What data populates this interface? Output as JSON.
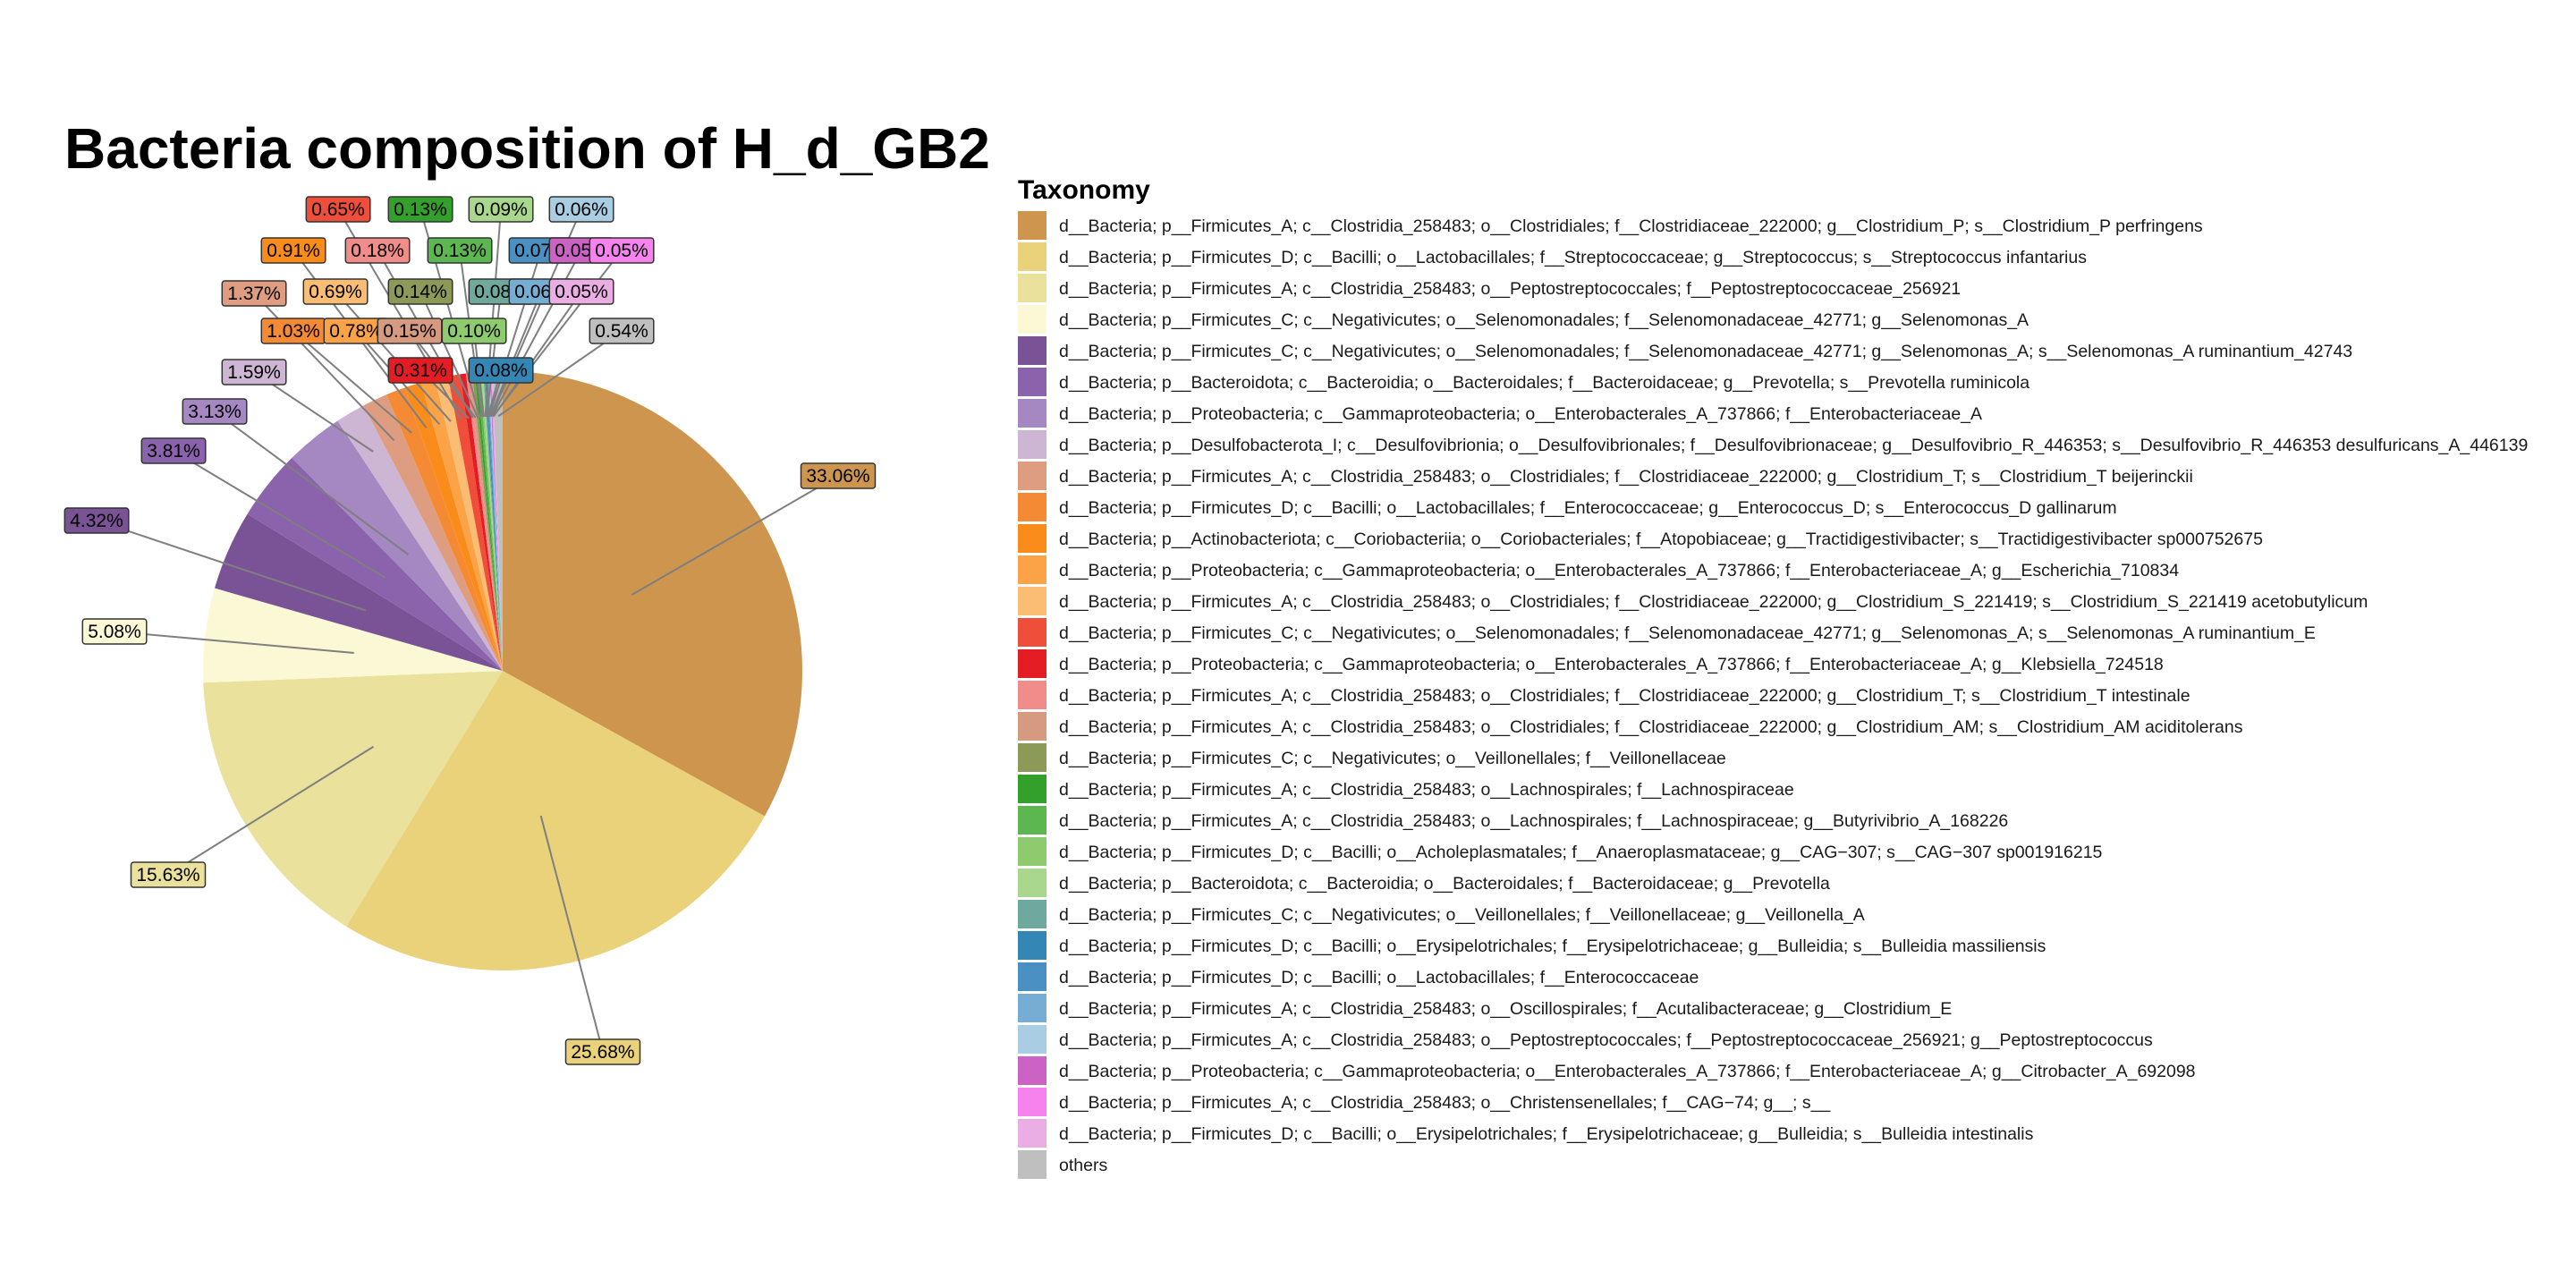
{
  "chart_data": {
    "type": "pie",
    "title": "Bacteria composition of H_d_GB2",
    "legend": {
      "title": "Taxonomy",
      "placement": "right"
    },
    "slices": [
      {
        "label": "d__Bacteria; p__Firmicutes_A; c__Clostridia_258483; o__Clostridiales; f__Clostridiaceae_222000; g__Clostridium_P; s__Clostridium_P perfringens",
        "value": 33.06,
        "value_label": "33.06%",
        "color": "#CE954F"
      },
      {
        "label": "d__Bacteria; p__Firmicutes_D; c__Bacilli; o__Lactobacillales; f__Streptococcaceae; g__Streptococcus; s__Streptococcus infantarius",
        "value": 25.68,
        "value_label": "25.68%",
        "color": "#E9D27A"
      },
      {
        "label": "d__Bacteria; p__Firmicutes_A; c__Clostridia_258483; o__Peptostreptococcales; f__Peptostreptococcaceae_256921",
        "value": 15.63,
        "value_label": "15.63%",
        "color": "#EAE19C"
      },
      {
        "label": "d__Bacteria; p__Firmicutes_C; c__Negativicutes; o__Selenomonadales; f__Selenomonadaceae_42771; g__Selenomonas_A",
        "value": 5.08,
        "value_label": "5.08%",
        "color": "#FAF8D5"
      },
      {
        "label": "d__Bacteria; p__Firmicutes_C; c__Negativicutes; o__Selenomonadales; f__Selenomonadaceae_42771; g__Selenomonas_A; s__Selenomonas_A ruminantium_42743",
        "value": 4.32,
        "value_label": "4.32%",
        "color": "#7A5296"
      },
      {
        "label": "d__Bacteria; p__Bacteroidota; c__Bacteroidia; o__Bacteroidales; f__Bacteroidaceae; g__Prevotella; s__Prevotella ruminicola",
        "value": 3.81,
        "value_label": "3.81%",
        "color": "#8A63AC"
      },
      {
        "label": "d__Bacteria; p__Proteobacteria; c__Gammaproteobacteria; o__Enterobacterales_A_737866; f__Enterobacteriaceae_A",
        "value": 3.13,
        "value_label": "3.13%",
        "color": "#A587C2"
      },
      {
        "label": "d__Bacteria; p__Desulfobacterota_I; c__Desulfovibrionia; o__Desulfovibrionales; f__Desulfovibrionaceae; g__Desulfovibrio_R_446353; s__Desulfovibrio_R_446353 desulfuricans_A_446139",
        "value": 1.59,
        "value_label": "1.59%",
        "color": "#CDB5D4"
      },
      {
        "label": "d__Bacteria; p__Firmicutes_A; c__Clostridia_258483; o__Clostridiales; f__Clostridiaceae_222000; g__Clostridium_T; s__Clostridium_T beijerinckii",
        "value": 1.37,
        "value_label": "1.37%",
        "color": "#DE9D80"
      },
      {
        "label": "d__Bacteria; p__Firmicutes_D; c__Bacilli; o__Lactobacillales; f__Enterococcaceae; g__Enterococcus_D; s__Enterococcus_D gallinarum",
        "value": 1.03,
        "value_label": "1.03%",
        "color": "#F48A34"
      },
      {
        "label": "d__Bacteria; p__Actinobacteriota; c__Coriobacteriia; o__Coriobacteriales; f__Atopobiaceae; g__Tractidigestivibacter; s__Tractidigestivibacter sp000752675",
        "value": 0.91,
        "value_label": "0.91%",
        "color": "#FA8C1C"
      },
      {
        "label": "d__Bacteria; p__Proteobacteria; c__Gammaproteobacteria; o__Enterobacterales_A_737866; f__Enterobacteriaceae_A; g__Escherichia_710834",
        "value": 0.78,
        "value_label": "0.78%",
        "color": "#FBA346"
      },
      {
        "label": "d__Bacteria; p__Firmicutes_A; c__Clostridia_258483; o__Clostridiales; f__Clostridiaceae_222000; g__Clostridium_S_221419; s__Clostridium_S_221419 acetobutylicum",
        "value": 0.69,
        "value_label": "0.69%",
        "color": "#FBBD73"
      },
      {
        "label": "d__Bacteria; p__Firmicutes_C; c__Negativicutes; o__Selenomonadales; f__Selenomonadaceae_42771; g__Selenomonas_A; s__Selenomonas_A ruminantium_E",
        "value": 0.65,
        "value_label": "0.65%",
        "color": "#EE4E3A"
      },
      {
        "label": "d__Bacteria; p__Proteobacteria; c__Gammaproteobacteria; o__Enterobacterales_A_737866; f__Enterobacteriaceae_A; g__Klebsiella_724518",
        "value": 0.31,
        "value_label": "0.31%",
        "color": "#E41D25"
      },
      {
        "label": "d__Bacteria; p__Firmicutes_A; c__Clostridia_258483; o__Clostridiales; f__Clostridiaceae_222000; g__Clostridium_T; s__Clostridium_T intestinale",
        "value": 0.18,
        "value_label": "0.18%",
        "color": "#F08C89"
      },
      {
        "label": "d__Bacteria; p__Firmicutes_A; c__Clostridia_258483; o__Clostridiales; f__Clostridiaceae_222000; g__Clostridium_AM; s__Clostridium_AM aciditolerans",
        "value": 0.15,
        "value_label": "0.15%",
        "color": "#D69A81"
      },
      {
        "label": "d__Bacteria; p__Firmicutes_C; c__Negativicutes; o__Veillonellales; f__Veillonellaceae",
        "value": 0.14,
        "value_label": "0.14%",
        "color": "#8C9A58"
      },
      {
        "label": "d__Bacteria; p__Firmicutes_A; c__Clostridia_258483; o__Lachnospirales; f__Lachnospiraceae",
        "value": 0.13,
        "value_label": "0.13%",
        "color": "#34A02C"
      },
      {
        "label": "d__Bacteria; p__Firmicutes_A; c__Clostridia_258483; o__Lachnospirales; f__Lachnospiraceae; g__Butyrivibrio_A_168226",
        "value": 0.13,
        "value_label": "0.13%",
        "color": "#5DB750"
      },
      {
        "label": "d__Bacteria; p__Firmicutes_D; c__Bacilli; o__Acholeplasmatales; f__Anaeroplasmataceae; g__CAG−307; s__CAG−307 sp001916215",
        "value": 0.1,
        "value_label": "0.10%",
        "color": "#8ECB6E"
      },
      {
        "label": "d__Bacteria; p__Bacteroidota; c__Bacteroidia; o__Bacteroidales; f__Bacteroidaceae; g__Prevotella",
        "value": 0.09,
        "value_label": "0.09%",
        "color": "#A9D78D"
      },
      {
        "label": "d__Bacteria; p__Firmicutes_C; c__Negativicutes; o__Veillonellales; f__Veillonellaceae; g__Veillonella_A",
        "value": 0.08,
        "value_label": "0.08%",
        "color": "#6FA89C"
      },
      {
        "label": "d__Bacteria; p__Firmicutes_D; c__Bacilli; o__Erysipelotrichales; f__Erysipelotrichaceae; g__Bulleidia; s__Bulleidia massiliensis",
        "value": 0.08,
        "value_label": "0.08%",
        "color": "#3486B4"
      },
      {
        "label": "d__Bacteria; p__Firmicutes_D; c__Bacilli; o__Lactobacillales; f__Enterococcaceae",
        "value": 0.07,
        "value_label": "0.07%",
        "color": "#4A90C2"
      },
      {
        "label": "d__Bacteria; p__Firmicutes_A; c__Clostridia_258483; o__Oscillospirales; f__Acutalibacteraceae; g__Clostridium_E",
        "value": 0.06,
        "value_label": "0.06%",
        "color": "#75ADD3"
      },
      {
        "label": "d__Bacteria; p__Firmicutes_A; c__Clostridia_258483; o__Peptostreptococcales; f__Peptostreptococcaceae_256921; g__Peptostreptococcus",
        "value": 0.06,
        "value_label": "0.06%",
        "color": "#A9CDE2"
      },
      {
        "label": "d__Bacteria; p__Proteobacteria; c__Gammaproteobacteria; o__Enterobacterales_A_737866; f__Enterobacteriaceae_A; g__Citrobacter_A_692098",
        "value": 0.05,
        "value_label": "0.05%",
        "color": "#CC63C4"
      },
      {
        "label": "d__Bacteria; p__Firmicutes_A; c__Clostridia_258483; o__Christensenellales; f__CAG−74; g__; s__",
        "value": 0.05,
        "value_label": "0.05%",
        "color": "#F682EE"
      },
      {
        "label": "d__Bacteria; p__Firmicutes_D; c__Bacilli; o__Erysipelotrichales; f__Erysipelotrichaceae; g__Bulleidia; s__Bulleidia intestinalis",
        "value": 0.05,
        "value_label": "0.05%",
        "color": "#EBAEE4"
      },
      {
        "label": "others",
        "value": 0.54,
        "value_label": "0.54%",
        "color": "#BFBFBF"
      }
    ]
  }
}
